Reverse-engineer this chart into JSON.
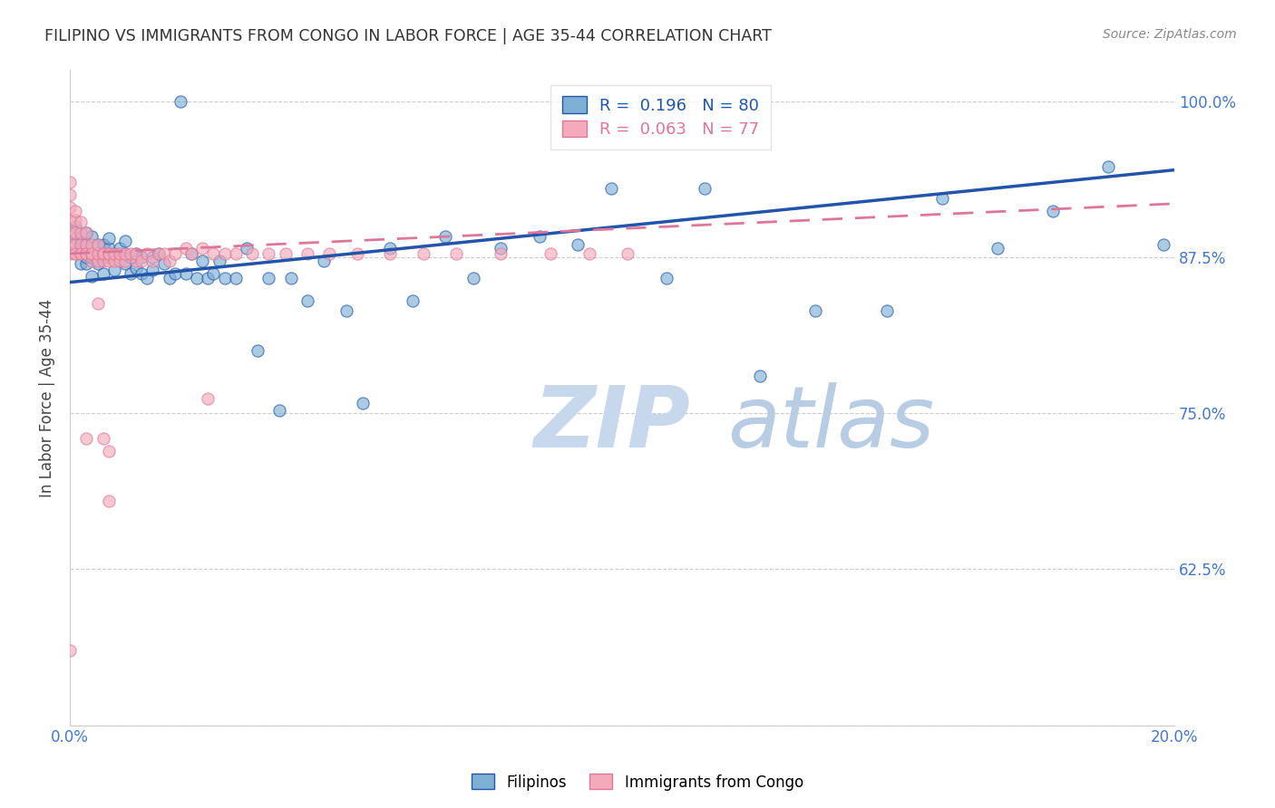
{
  "title": "FILIPINO VS IMMIGRANTS FROM CONGO IN LABOR FORCE | AGE 35-44 CORRELATION CHART",
  "source": "Source: ZipAtlas.com",
  "ylabel": "In Labor Force | Age 35-44",
  "x_min": 0.0,
  "x_max": 0.2,
  "y_min": 0.5,
  "y_max": 1.025,
  "y_ticks": [
    0.5,
    0.625,
    0.75,
    0.875,
    1.0
  ],
  "y_tick_labels": [
    "",
    "62.5%",
    "75.0%",
    "87.5%",
    "100.0%"
  ],
  "blue_R": 0.196,
  "blue_N": 80,
  "pink_R": 0.063,
  "pink_N": 77,
  "blue_color": "#7EB0D4",
  "pink_color": "#F4AABB",
  "blue_line_color": "#2255AA",
  "pink_line_color": "#DD7799",
  "axis_color": "#4477CC",
  "grid_color": "#CCCCCC",
  "watermark_main_color": "#C8D8EC",
  "watermark_sub_color": "#B8CCE4",
  "title_color": "#333333",
  "blue_line_x0": 0.0,
  "blue_line_y0": 0.855,
  "blue_line_x1": 0.2,
  "blue_line_y1": 0.945,
  "pink_line_x0": 0.0,
  "pink_line_y0": 0.878,
  "pink_line_x1": 0.2,
  "pink_line_y1": 0.918,
  "blue_scatter_x": [
    0.001,
    0.001,
    0.001,
    0.002,
    0.002,
    0.002,
    0.003,
    0.003,
    0.003,
    0.003,
    0.004,
    0.004,
    0.004,
    0.004,
    0.005,
    0.005,
    0.005,
    0.006,
    0.006,
    0.006,
    0.007,
    0.007,
    0.007,
    0.008,
    0.008,
    0.009,
    0.009,
    0.01,
    0.01,
    0.01,
    0.011,
    0.011,
    0.012,
    0.012,
    0.013,
    0.013,
    0.014,
    0.015,
    0.015,
    0.016,
    0.017,
    0.018,
    0.019,
    0.02,
    0.021,
    0.022,
    0.023,
    0.024,
    0.025,
    0.026,
    0.027,
    0.028,
    0.03,
    0.032,
    0.034,
    0.036,
    0.038,
    0.04,
    0.043,
    0.046,
    0.05,
    0.053,
    0.058,
    0.062,
    0.068,
    0.073,
    0.078,
    0.085,
    0.092,
    0.098,
    0.108,
    0.115,
    0.125,
    0.135,
    0.148,
    0.158,
    0.168,
    0.178,
    0.188,
    0.198
  ],
  "blue_scatter_y": [
    0.88,
    0.89,
    0.9,
    0.87,
    0.88,
    0.89,
    0.87,
    0.875,
    0.885,
    0.895,
    0.86,
    0.875,
    0.882,
    0.892,
    0.87,
    0.878,
    0.885,
    0.862,
    0.875,
    0.885,
    0.875,
    0.882,
    0.89,
    0.865,
    0.878,
    0.875,
    0.882,
    0.87,
    0.878,
    0.888,
    0.862,
    0.875,
    0.866,
    0.878,
    0.862,
    0.875,
    0.858,
    0.865,
    0.875,
    0.878,
    0.87,
    0.858,
    0.862,
    1.0,
    0.862,
    0.878,
    0.858,
    0.872,
    0.858,
    0.862,
    0.872,
    0.858,
    0.858,
    0.882,
    0.8,
    0.858,
    0.752,
    0.858,
    0.84,
    0.872,
    0.832,
    0.758,
    0.882,
    0.84,
    0.892,
    0.858,
    0.882,
    0.892,
    0.885,
    0.93,
    0.858,
    0.93,
    0.78,
    0.832,
    0.832,
    0.922,
    0.882,
    0.912,
    0.948,
    0.885
  ],
  "pink_scatter_x": [
    0.0,
    0.0,
    0.0,
    0.0,
    0.0,
    0.0,
    0.0,
    0.001,
    0.001,
    0.001,
    0.001,
    0.001,
    0.001,
    0.002,
    0.002,
    0.002,
    0.002,
    0.002,
    0.003,
    0.003,
    0.003,
    0.003,
    0.004,
    0.004,
    0.004,
    0.004,
    0.005,
    0.005,
    0.005,
    0.006,
    0.006,
    0.006,
    0.007,
    0.007,
    0.007,
    0.008,
    0.008,
    0.009,
    0.009,
    0.01,
    0.01,
    0.011,
    0.012,
    0.012,
    0.013,
    0.014,
    0.015,
    0.016,
    0.017,
    0.018,
    0.019,
    0.021,
    0.022,
    0.024,
    0.026,
    0.028,
    0.03,
    0.033,
    0.036,
    0.039,
    0.043,
    0.047,
    0.052,
    0.058,
    0.064,
    0.07,
    0.078,
    0.087,
    0.094,
    0.101,
    0.005,
    0.025,
    0.003,
    0.007,
    0.006,
    0.007,
    0.0
  ],
  "pink_scatter_y": [
    0.878,
    0.885,
    0.895,
    0.905,
    0.915,
    0.925,
    0.935,
    0.878,
    0.885,
    0.895,
    0.905,
    0.912,
    0.878,
    0.878,
    0.885,
    0.895,
    0.903,
    0.878,
    0.878,
    0.885,
    0.895,
    0.878,
    0.872,
    0.878,
    0.885,
    0.878,
    0.872,
    0.878,
    0.885,
    0.872,
    0.878,
    0.878,
    0.872,
    0.878,
    0.878,
    0.872,
    0.878,
    0.872,
    0.878,
    0.872,
    0.878,
    0.878,
    0.872,
    0.878,
    0.872,
    0.878,
    0.872,
    0.878,
    0.878,
    0.872,
    0.878,
    0.882,
    0.878,
    0.882,
    0.878,
    0.878,
    0.878,
    0.878,
    0.878,
    0.878,
    0.878,
    0.878,
    0.878,
    0.878,
    0.878,
    0.878,
    0.878,
    0.878,
    0.878,
    0.878,
    0.838,
    0.762,
    0.73,
    0.72,
    0.73,
    0.68,
    0.56
  ]
}
